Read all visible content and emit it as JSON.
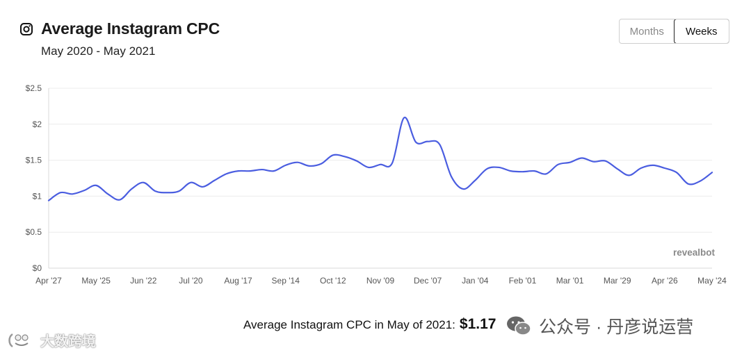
{
  "header": {
    "title": "Average Instagram CPC",
    "subtitle": "May 2020 - May 2021",
    "icon": "instagram-icon"
  },
  "toggle": {
    "options": [
      "Months",
      "Weeks"
    ],
    "selected": "Weeks"
  },
  "chart_data": {
    "type": "line",
    "title": "Average Instagram CPC",
    "xlabel": "",
    "ylabel": "",
    "ylim": [
      0,
      2.5
    ],
    "yticks": [
      0,
      0.5,
      1,
      1.5,
      2,
      2.5
    ],
    "ytick_labels": [
      "$0",
      "$0.5",
      "$1",
      "$1.5",
      "$2",
      "$2.5"
    ],
    "xtick_labels": [
      "Apr '27",
      "May '25",
      "Jun '22",
      "Jul '20",
      "Aug '17",
      "Sep '14",
      "Oct '12",
      "Nov '09",
      "Dec '07",
      "Jan '04",
      "Feb '01",
      "Mar '01",
      "Mar '29",
      "Apr '26",
      "May '24"
    ],
    "grid": true,
    "line_color": "#4a5de0",
    "series": [
      {
        "name": "Average Instagram CPC",
        "x": [
          0,
          0.5,
          1,
          1.5,
          2,
          2.5,
          3,
          3.5,
          4,
          4.5,
          5,
          5.5,
          6,
          6.5,
          7,
          7.5,
          8,
          8.5,
          9,
          9.5,
          10,
          10.5,
          11,
          11.5,
          12,
          12.5,
          13,
          13.5,
          14,
          14.5,
          15,
          15.5,
          16,
          16.5,
          17,
          17.5,
          18,
          18.5,
          19,
          19.5,
          20,
          20.5,
          21,
          21.5,
          22,
          22.5,
          23,
          23.5,
          24,
          24.5,
          25,
          25.5,
          26,
          26.5,
          27,
          27.5,
          28
        ],
        "values": [
          0.94,
          1.05,
          1.03,
          1.08,
          1.15,
          1.03,
          0.95,
          1.1,
          1.19,
          1.07,
          1.05,
          1.07,
          1.19,
          1.13,
          1.22,
          1.31,
          1.35,
          1.35,
          1.37,
          1.35,
          1.43,
          1.47,
          1.42,
          1.45,
          1.57,
          1.55,
          1.49,
          1.4,
          1.44,
          1.46,
          2.09,
          1.75,
          1.76,
          1.72,
          1.27,
          1.1,
          1.22,
          1.38,
          1.4,
          1.35,
          1.34,
          1.35,
          1.31,
          1.44,
          1.47,
          1.53,
          1.48,
          1.49,
          1.38,
          1.29,
          1.39,
          1.43,
          1.39,
          1.33,
          1.17,
          1.21,
          1.33
        ]
      }
    ],
    "watermark": "revealbot"
  },
  "footer": {
    "label": "Average Instagram CPC in May of 2021:",
    "value": "$1.17"
  },
  "watermarks": {
    "right": "公众号 · 丹彦说运营",
    "left": "大数跨境"
  }
}
